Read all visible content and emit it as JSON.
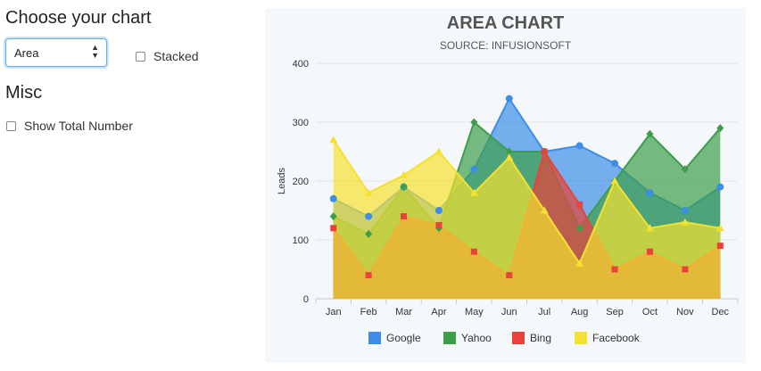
{
  "controls": {
    "heading": "Choose your chart",
    "chart_type_selected": "Area",
    "stacked_label": "Stacked",
    "misc_heading": "Misc",
    "show_total_label": "Show Total Number"
  },
  "chart_data": {
    "type": "area",
    "title": "AREA CHART",
    "subtitle": "SOURCE: INFUSIONSOFT",
    "xlabel": "",
    "ylabel": "Leads",
    "ylim": [
      0,
      400
    ],
    "yticks": [
      0,
      100,
      200,
      300,
      400
    ],
    "grid": true,
    "legend_position": "bottom",
    "categories": [
      "Jan",
      "Feb",
      "Mar",
      "Apr",
      "May",
      "Jun",
      "Jul",
      "Aug",
      "Sep",
      "Oct",
      "Nov",
      "Dec"
    ],
    "series": [
      {
        "name": "Google",
        "color": "#3d8ee6",
        "values": [
          170,
          140,
          190,
          150,
          220,
          340,
          250,
          260,
          230,
          180,
          150,
          190
        ]
      },
      {
        "name": "Yahoo",
        "color": "#3d9e4a",
        "values": [
          140,
          110,
          190,
          120,
          300,
          250,
          250,
          120,
          200,
          280,
          220,
          290
        ]
      },
      {
        "name": "Bing",
        "color": "#e8423b",
        "values": [
          120,
          40,
          140,
          125,
          80,
          40,
          250,
          160,
          50,
          80,
          50,
          90
        ]
      },
      {
        "name": "Facebook",
        "color": "#f5e12f",
        "values": [
          270,
          180,
          210,
          250,
          180,
          240,
          150,
          60,
          200,
          120,
          130,
          120
        ]
      }
    ]
  }
}
